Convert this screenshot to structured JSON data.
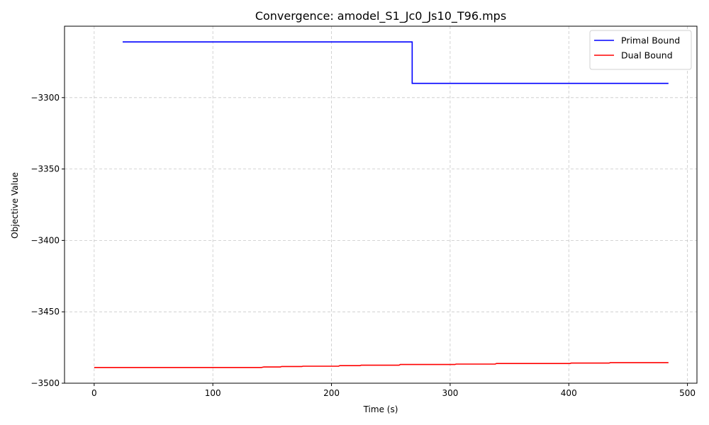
{
  "chart_data": {
    "type": "line",
    "title": "Convergence: amodel_S1_Jc0_Js10_T96.mps",
    "xlabel": "Time (s)",
    "ylabel": "Objective Value",
    "xlim": [
      -25,
      508
    ],
    "ylim": [
      -3500,
      -3250
    ],
    "xticks": [
      0,
      100,
      200,
      300,
      400,
      500
    ],
    "yticks": [
      -3500,
      -3450,
      -3400,
      -3350,
      -3300
    ],
    "xtick_labels": [
      "0",
      "100",
      "200",
      "300",
      "400",
      "500"
    ],
    "ytick_labels": [
      "−3500",
      "−3450",
      "−3400",
      "−3350",
      "−3300"
    ],
    "grid": true,
    "legend_position": "top-right",
    "series": [
      {
        "name": "Primal Bound",
        "color": "#0000ff",
        "step": true,
        "points": [
          [
            24,
            -3261
          ],
          [
            268,
            -3261
          ],
          [
            268,
            -3290
          ],
          [
            484,
            -3290
          ]
        ]
      },
      {
        "name": "Dual Bound",
        "color": "#ff0000",
        "step": true,
        "points": [
          [
            0,
            -3489
          ],
          [
            141,
            -3489
          ],
          [
            143,
            -3488.6
          ],
          [
            157,
            -3488.6
          ],
          [
            158,
            -3488.3
          ],
          [
            175,
            -3488.3
          ],
          [
            176,
            -3488.1
          ],
          [
            206,
            -3488.1
          ],
          [
            207,
            -3487.7
          ],
          [
            224,
            -3487.7
          ],
          [
            225,
            -3487.4
          ],
          [
            257,
            -3487.4
          ],
          [
            258,
            -3486.9
          ],
          [
            304,
            -3486.9
          ],
          [
            305,
            -3486.6
          ],
          [
            338,
            -3486.6
          ],
          [
            339,
            -3486.2
          ],
          [
            401,
            -3486.2
          ],
          [
            402,
            -3485.9
          ],
          [
            434,
            -3485.9
          ],
          [
            435,
            -3485.6
          ],
          [
            484,
            -3485.6
          ]
        ]
      }
    ]
  }
}
